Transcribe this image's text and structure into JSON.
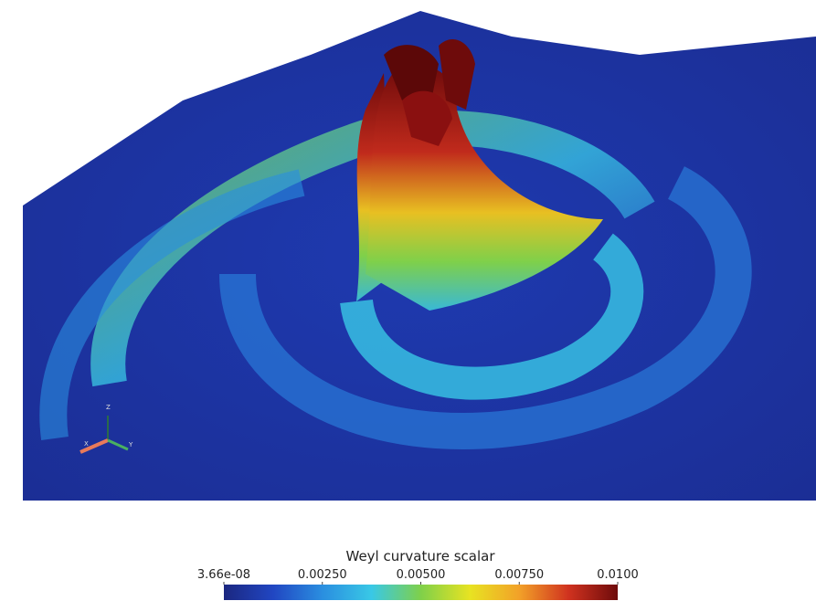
{
  "colorbar": {
    "title": "Weyl curvature scalar",
    "clim": [
      3.66e-08,
      0.01
    ],
    "ticks": [
      {
        "value": 3.66e-08,
        "label": "3.66e-08"
      },
      {
        "value": 0.0025,
        "label": "0.00250"
      },
      {
        "value": 0.005,
        "label": "0.00500"
      },
      {
        "value": 0.0075,
        "label": "0.00750"
      },
      {
        "value": 0.01,
        "label": "0.0100"
      }
    ],
    "colormap": [
      "#1b2780",
      "#2146c2",
      "#2a8ee0",
      "#39c8e6",
      "#7fd04a",
      "#e8e322",
      "#f2a128",
      "#d0321f",
      "#6e0b0b"
    ]
  },
  "axes_triad": {
    "z": "Z",
    "x": "X",
    "y": "Y"
  }
}
